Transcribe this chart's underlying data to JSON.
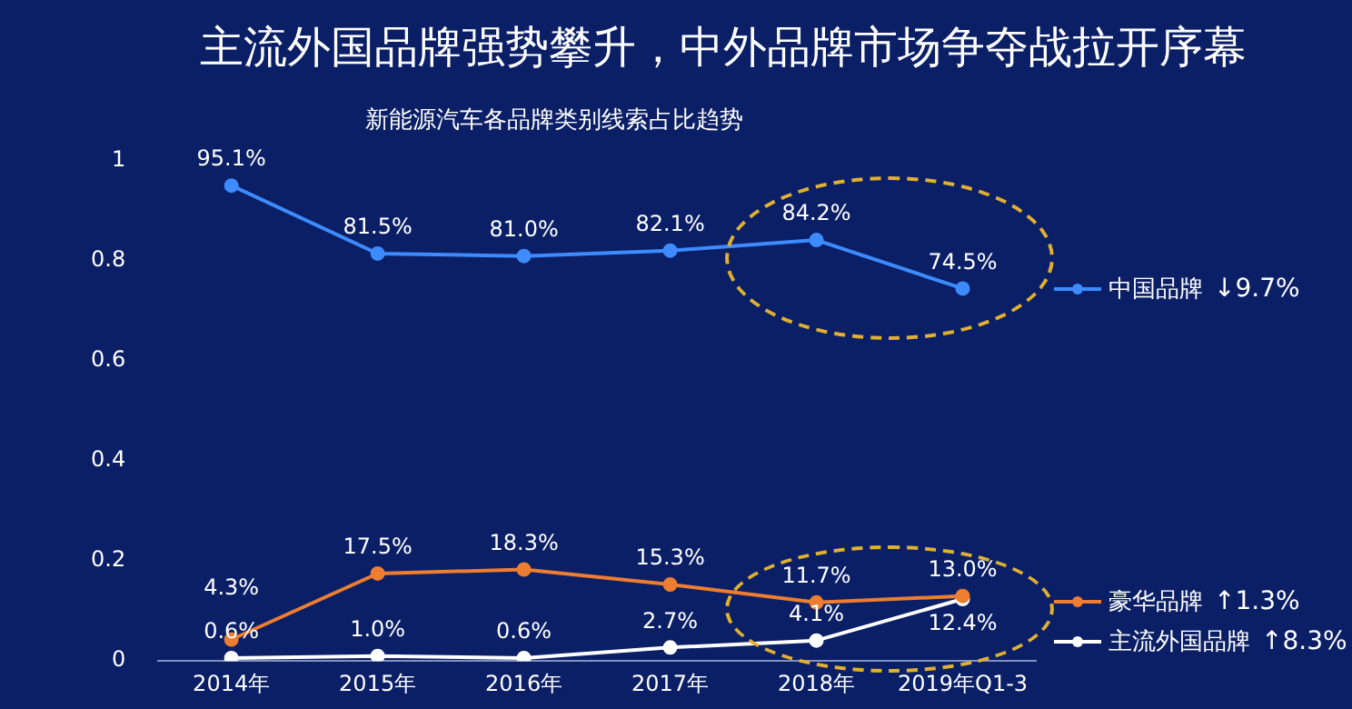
{
  "chart_data": {
    "type": "line",
    "title": "主流外国品牌强势攀升，中外品牌市场争夺战拉开序幕",
    "subtitle": "新能源汽车各品牌类别线索占比趋势",
    "categories": [
      "2014年",
      "2015年",
      "2016年",
      "2017年",
      "2018年",
      "2019年Q1-3"
    ],
    "series": [
      {
        "name": "中国品牌",
        "color": "#3d8bff",
        "values": [
          0.951,
          0.815,
          0.81,
          0.821,
          0.842,
          0.745
        ],
        "value_labels": [
          "95.1%",
          "81.5%",
          "81.0%",
          "82.1%",
          "84.2%",
          "74.5%"
        ]
      },
      {
        "name": "豪华品牌",
        "color": "#ed7d31",
        "values": [
          0.043,
          0.175,
          0.183,
          0.153,
          0.117,
          0.13
        ],
        "value_labels": [
          "4.3%",
          "17.5%",
          "18.3%",
          "15.3%",
          "11.7%",
          "13.0%"
        ]
      },
      {
        "name": "主流外国品牌",
        "color": "#ffffff",
        "values": [
          0.006,
          0.01,
          0.006,
          0.027,
          0.041,
          0.124
        ],
        "value_labels": [
          "0.6%",
          "1.0%",
          "0.6%",
          "2.7%",
          "4.1%",
          "12.4%"
        ]
      }
    ],
    "annotations": [
      "↓9.7%",
      "↑1.3%",
      "↑8.3%"
    ],
    "ylim": [
      0,
      1
    ],
    "yticks": [
      0,
      0.2,
      0.4,
      0.6,
      0.8,
      1
    ],
    "grid": false,
    "legend": "right",
    "marker": "circle",
    "line_style": "solid"
  }
}
